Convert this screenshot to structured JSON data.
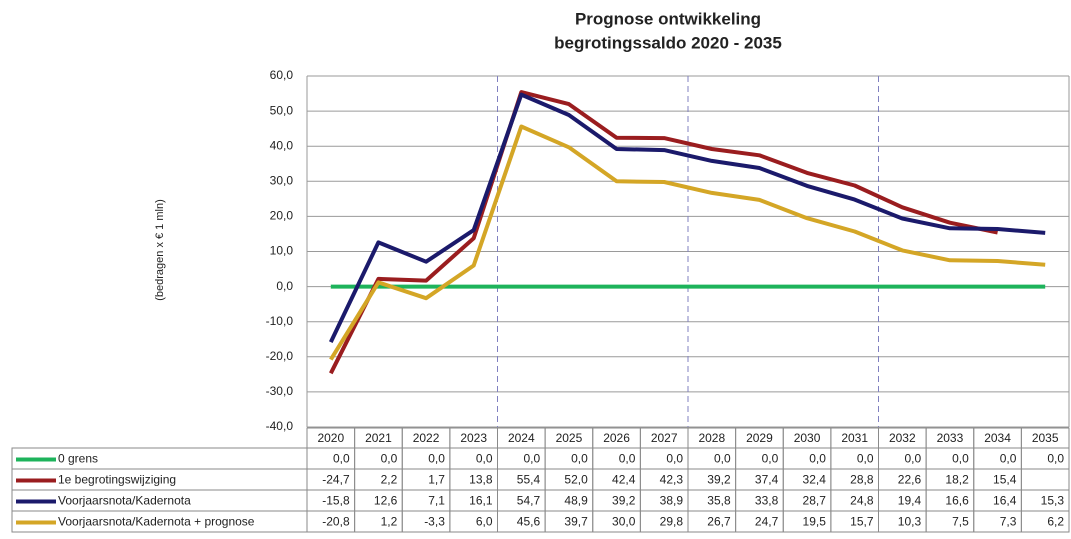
{
  "chart_data": {
    "type": "line",
    "title": [
      "Prognose ontwikkeling",
      "begrotingssaldo 2020 - 2035"
    ],
    "ylabel": "(bedragen  x € 1 mln)",
    "categories": [
      "2020",
      "2021",
      "2022",
      "2023",
      "2024",
      "2025",
      "2026",
      "2027",
      "2028",
      "2029",
      "2030",
      "2031",
      "2032",
      "2033",
      "2034",
      "2035"
    ],
    "ylim": [
      -40,
      60
    ],
    "yticks": [
      {
        "value": -40,
        "label": "-40,0"
      },
      {
        "value": -30,
        "label": "-30,0"
      },
      {
        "value": -20,
        "label": "-20,0"
      },
      {
        "value": -10,
        "label": "-10,0"
      },
      {
        "value": 0,
        "label": "0,0"
      },
      {
        "value": 10,
        "label": "10,0"
      },
      {
        "value": 20,
        "label": "20,0"
      },
      {
        "value": 30,
        "label": "30,0"
      },
      {
        "value": 40,
        "label": "40,0"
      },
      {
        "value": 50,
        "label": "50,0"
      },
      {
        "value": 60,
        "label": "60,0"
      }
    ],
    "grid": true,
    "series": [
      {
        "name": "0 grens",
        "color": "#1db35b",
        "values": [
          0,
          0,
          0,
          0,
          0,
          0,
          0,
          0,
          0,
          0,
          0,
          0,
          0,
          0,
          0,
          0
        ],
        "value_labels": [
          "0,0",
          "0,0",
          "0,0",
          "0,0",
          "0,0",
          "0,0",
          "0,0",
          "0,0",
          "0,0",
          "0,0",
          "0,0",
          "0,0",
          "0,0",
          "0,0",
          "0,0",
          "0,0"
        ]
      },
      {
        "name": "1e begrotingswijziging",
        "color": "#9a1d1f",
        "values": [
          -24.7,
          2.2,
          1.7,
          13.8,
          55.4,
          52.0,
          42.4,
          42.3,
          39.2,
          37.4,
          32.4,
          28.8,
          22.6,
          18.2,
          15.4,
          null
        ],
        "value_labels": [
          "-24,7",
          "2,2",
          "1,7",
          "13,8",
          "55,4",
          "52,0",
          "42,4",
          "42,3",
          "39,2",
          "37,4",
          "32,4",
          "28,8",
          "22,6",
          "18,2",
          "15,4",
          null
        ]
      },
      {
        "name": "Voorjaarsnota/Kadernota",
        "color": "#1b1a6b",
        "values": [
          -15.8,
          12.6,
          7.1,
          16.1,
          54.7,
          48.9,
          39.2,
          38.9,
          35.8,
          33.8,
          28.7,
          24.8,
          19.4,
          16.6,
          16.4,
          15.3
        ],
        "value_labels": [
          "-15,8",
          "12,6",
          "7,1",
          "16,1",
          "54,7",
          "48,9",
          "39,2",
          "38,9",
          "35,8",
          "33,8",
          "28,7",
          "24,8",
          "19,4",
          "16,6",
          "16,4",
          "15,3"
        ]
      },
      {
        "name": "Voorjaarsnota/Kadernota + prognose",
        "color": "#d4a626",
        "values": [
          -20.8,
          1.2,
          -3.3,
          6.0,
          45.6,
          39.7,
          30.0,
          29.8,
          26.7,
          24.7,
          19.5,
          15.7,
          10.3,
          7.5,
          7.3,
          6.2
        ],
        "value_labels": [
          "-20,8",
          "1,2",
          "-3,3",
          "6,0",
          "45,6",
          "39,7",
          "30,0",
          "29,8",
          "26,7",
          "24,7",
          "19,5",
          "15,7",
          "10,3",
          "7,5",
          "7,3",
          "6,2"
        ]
      }
    ]
  }
}
